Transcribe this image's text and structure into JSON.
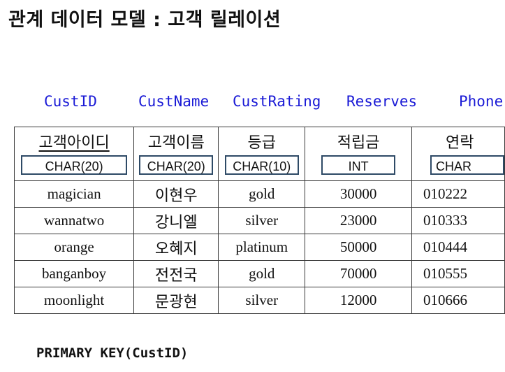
{
  "title": "관계 데이터 모델 : 고객 릴레이션",
  "columns": [
    {
      "eng": "CustID",
      "korean": "고객아이디",
      "type": "CHAR(20)"
    },
    {
      "eng": "CustName",
      "korean": "고객이름",
      "type": "CHAR(20)"
    },
    {
      "eng": "CustRating",
      "korean": "등급",
      "type": "CHAR(10)"
    },
    {
      "eng": "Reserves",
      "korean": "적립금",
      "type": "INT"
    },
    {
      "eng": "Phone",
      "korean": "연락",
      "type": "CHAR"
    }
  ],
  "rows": [
    [
      "magician",
      "이현우",
      "gold",
      "30000",
      "010222"
    ],
    [
      "wannatwo",
      "강니엘",
      "silver",
      "23000",
      "010333"
    ],
    [
      "orange",
      "오혜지",
      "platinum",
      "50000",
      "010444"
    ],
    [
      "banganboy",
      "전전국",
      "gold",
      "70000",
      "010555"
    ],
    [
      "moonlight",
      "문광현",
      "silver",
      "12000",
      "010666"
    ]
  ],
  "primary_key": "PRIMARY KEY(CustID)",
  "colors": {
    "english_names": "#1a1ad6",
    "type_box_border": "#2e4a66",
    "grid": "#3a3a3a"
  }
}
